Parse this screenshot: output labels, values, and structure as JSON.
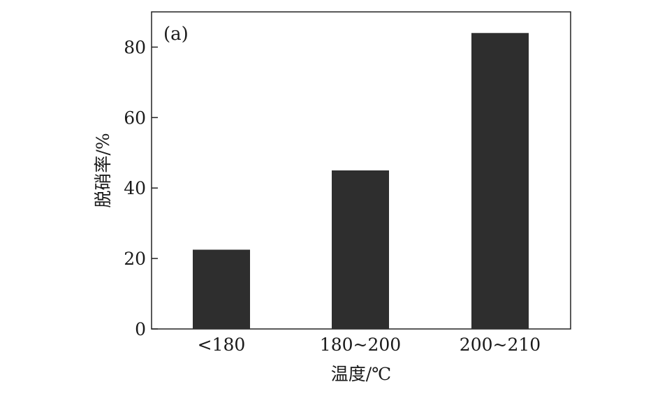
{
  "chart_data": {
    "type": "bar",
    "panel_label": "(a)",
    "categories": [
      "<180",
      "180~200",
      "200~210"
    ],
    "values": [
      22.5,
      45,
      84
    ],
    "xlabel": "温度/℃",
    "ylabel": "脱硝率/%",
    "ylim": [
      0,
      90
    ],
    "yticks": [
      0,
      20,
      40,
      60,
      80
    ],
    "grid": false,
    "legend": "none",
    "colors": {
      "bar": "#2e2e2e",
      "axis": "#222222"
    }
  }
}
